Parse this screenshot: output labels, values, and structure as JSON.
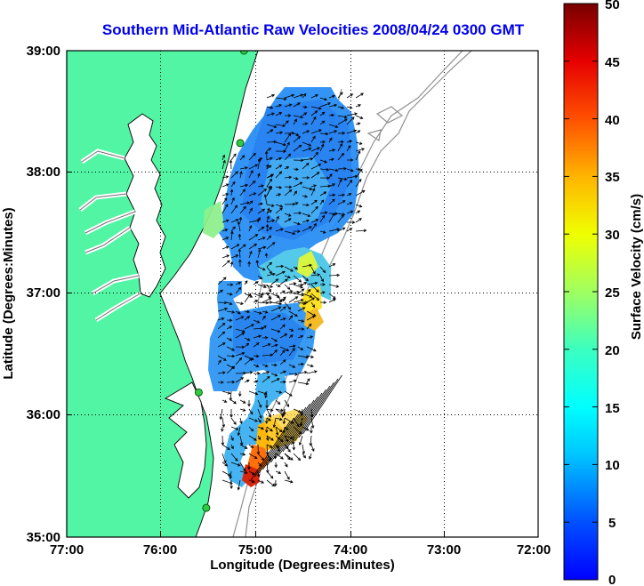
{
  "title": "Southern Mid-Atlantic Raw Velocities 2008/04/24 0300 GMT",
  "xlabel": "Longitude (Degrees:Minutes)",
  "ylabel": "Latitude (Degrees:Minutes)",
  "x_ticks": [
    "77:00",
    "76:00",
    "75:00",
    "74:00",
    "73:00",
    "72:00"
  ],
  "y_ticks": [
    "39:00",
    "38:00",
    "37:00",
    "36:00",
    "35:00"
  ],
  "colorbar": {
    "label": "Surface Velocity (cm/s)",
    "ticks": [
      "50",
      "45",
      "40",
      "35",
      "30",
      "25",
      "20",
      "15",
      "10",
      "5",
      "0"
    ],
    "range": [
      0,
      50
    ],
    "colormap": "jet"
  },
  "colors": {
    "land": "#52f5a4",
    "water": "#ffffff",
    "bathymetry": "#909090",
    "grid": "#000000",
    "station": "#2ecc40"
  },
  "map_extent": {
    "lon": [
      -77,
      -72
    ],
    "lat": [
      35,
      39
    ]
  },
  "stations": [
    {
      "lon": -75.12,
      "lat": 39.0
    },
    {
      "lon": -75.16,
      "lat": 38.24
    },
    {
      "lon": -75.6,
      "lat": 36.19
    },
    {
      "lon": -75.52,
      "lat": 35.24
    }
  ]
}
